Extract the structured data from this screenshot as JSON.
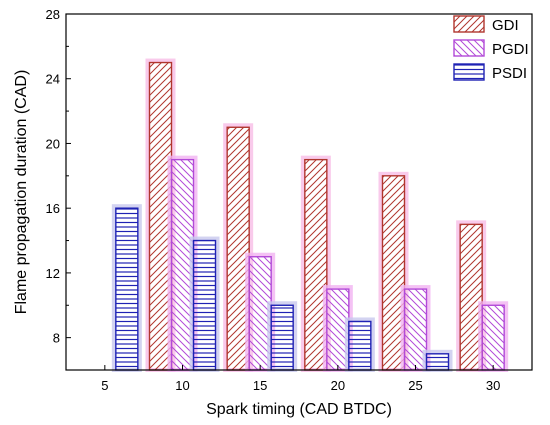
{
  "chart_data": {
    "type": "bar",
    "xlabel": "Spark timing (CAD BTDC)",
    "ylabel": "Flame propagation duration (CAD)",
    "categories": [
      "5",
      "10",
      "15",
      "20",
      "25",
      "30"
    ],
    "ylim": [
      6,
      28
    ],
    "yticks": [
      "8",
      "12",
      "16",
      "20",
      "24",
      "28"
    ],
    "grid": false,
    "legend_position": "top-right",
    "series": [
      {
        "name": "GDI",
        "values": [
          null,
          25,
          21,
          19,
          18,
          15
        ],
        "color": "#b0362e",
        "glow": "#f7bde6",
        "hatch": "diagonal-up"
      },
      {
        "name": "PGDI",
        "values": [
          null,
          19,
          13,
          11,
          11,
          10
        ],
        "color": "#b24ad8",
        "glow": "#f1b3f1",
        "hatch": "diagonal-down"
      },
      {
        "name": "PSDI",
        "values": [
          16,
          14,
          10,
          9,
          7,
          null
        ],
        "color": "#1f22b4",
        "glow": "#c8c8ee",
        "hatch": "horizontal"
      }
    ]
  }
}
